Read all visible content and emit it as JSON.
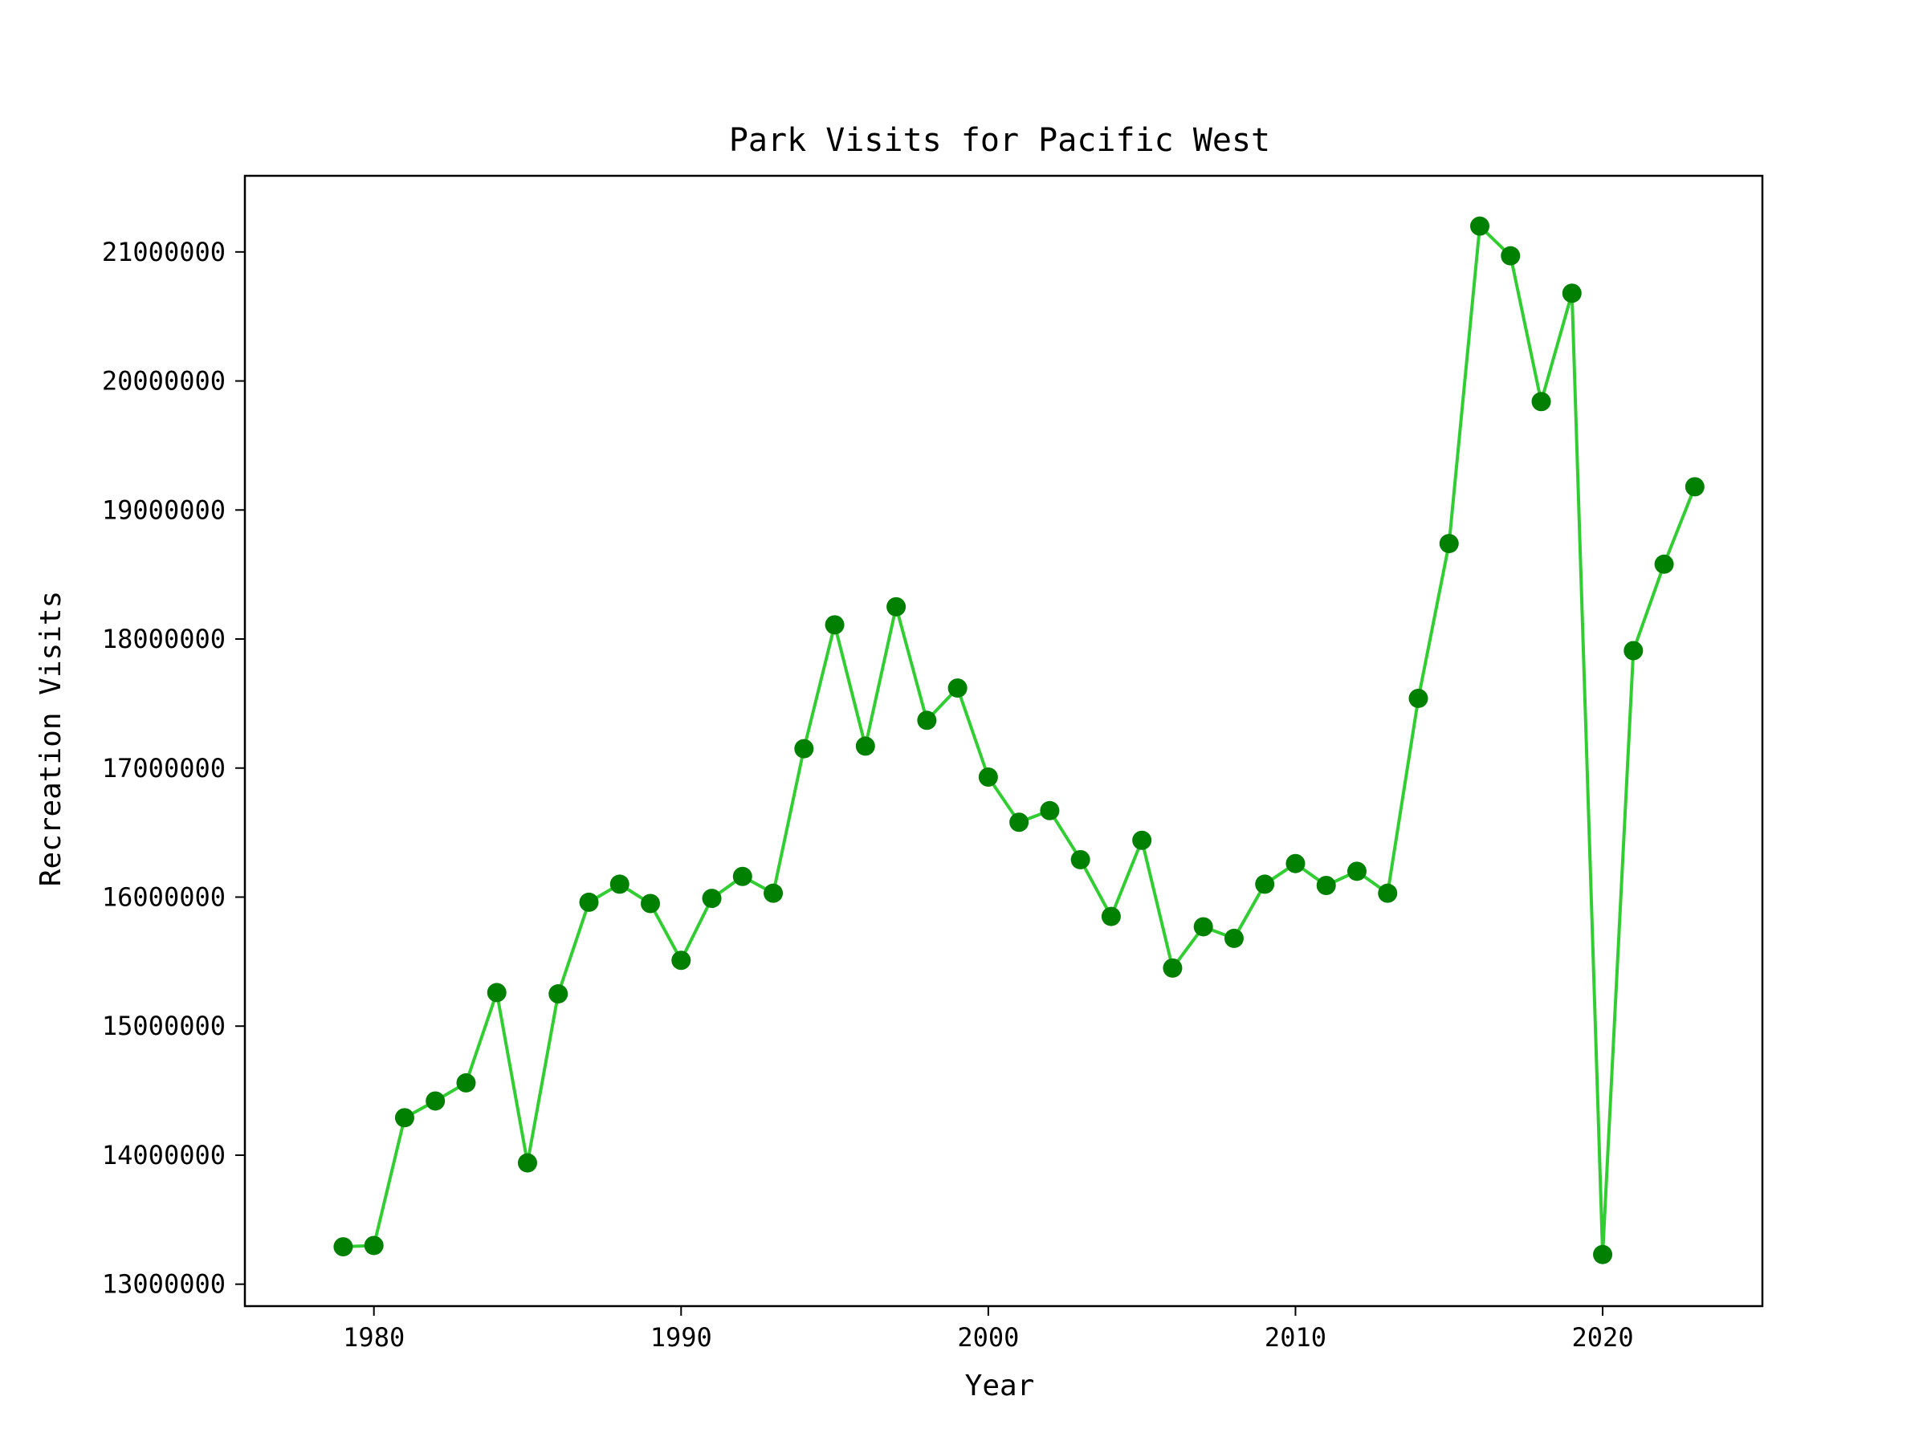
{
  "chart_data": {
    "type": "line",
    "title": "Park Visits for Pacific West",
    "xlabel": "Year",
    "ylabel": "Recreation Visits",
    "x": [
      1979,
      1980,
      1981,
      1982,
      1983,
      1984,
      1985,
      1986,
      1987,
      1988,
      1989,
      1990,
      1991,
      1992,
      1993,
      1994,
      1995,
      1996,
      1997,
      1998,
      1999,
      2000,
      2001,
      2002,
      2003,
      2004,
      2005,
      2006,
      2007,
      2008,
      2009,
      2010,
      2011,
      2012,
      2013,
      2014,
      2015,
      2016,
      2017,
      2018,
      2019,
      2020,
      2021,
      2022,
      2023
    ],
    "series": [
      {
        "values": [
          13290000,
          13300000,
          14290000,
          14420000,
          14560000,
          15260000,
          13940000,
          15250000,
          15960000,
          16100000,
          15950000,
          15510000,
          15990000,
          16160000,
          16030000,
          17150000,
          18110000,
          17170000,
          18250000,
          17370000,
          17620000,
          16930000,
          16580000,
          16670000,
          16290000,
          15850000,
          16440000,
          15450000,
          15770000,
          15680000,
          16100000,
          16260000,
          16090000,
          16200000,
          16030000,
          17540000,
          18740000,
          21200000,
          20970000,
          19840000,
          20680000,
          13230000,
          17910000,
          18580000,
          19180000
        ],
        "line_color": "#32cd32",
        "marker_color": "#008000"
      }
    ],
    "xlim": [
      1975.8,
      2025.2
    ],
    "ylim": [
      12830000,
      21590000
    ],
    "xticks": [
      1980,
      1990,
      2000,
      2010,
      2020
    ],
    "xtick_labels": [
      "1980",
      "1990",
      "2000",
      "2010",
      "2020"
    ],
    "yticks": [
      13000000,
      14000000,
      15000000,
      16000000,
      17000000,
      18000000,
      19000000,
      20000000,
      21000000
    ],
    "ytick_labels": [
      "13000000",
      "14000000",
      "15000000",
      "16000000",
      "17000000",
      "18000000",
      "19000000",
      "20000000",
      "21000000"
    ],
    "grid": false,
    "legend": "none"
  }
}
